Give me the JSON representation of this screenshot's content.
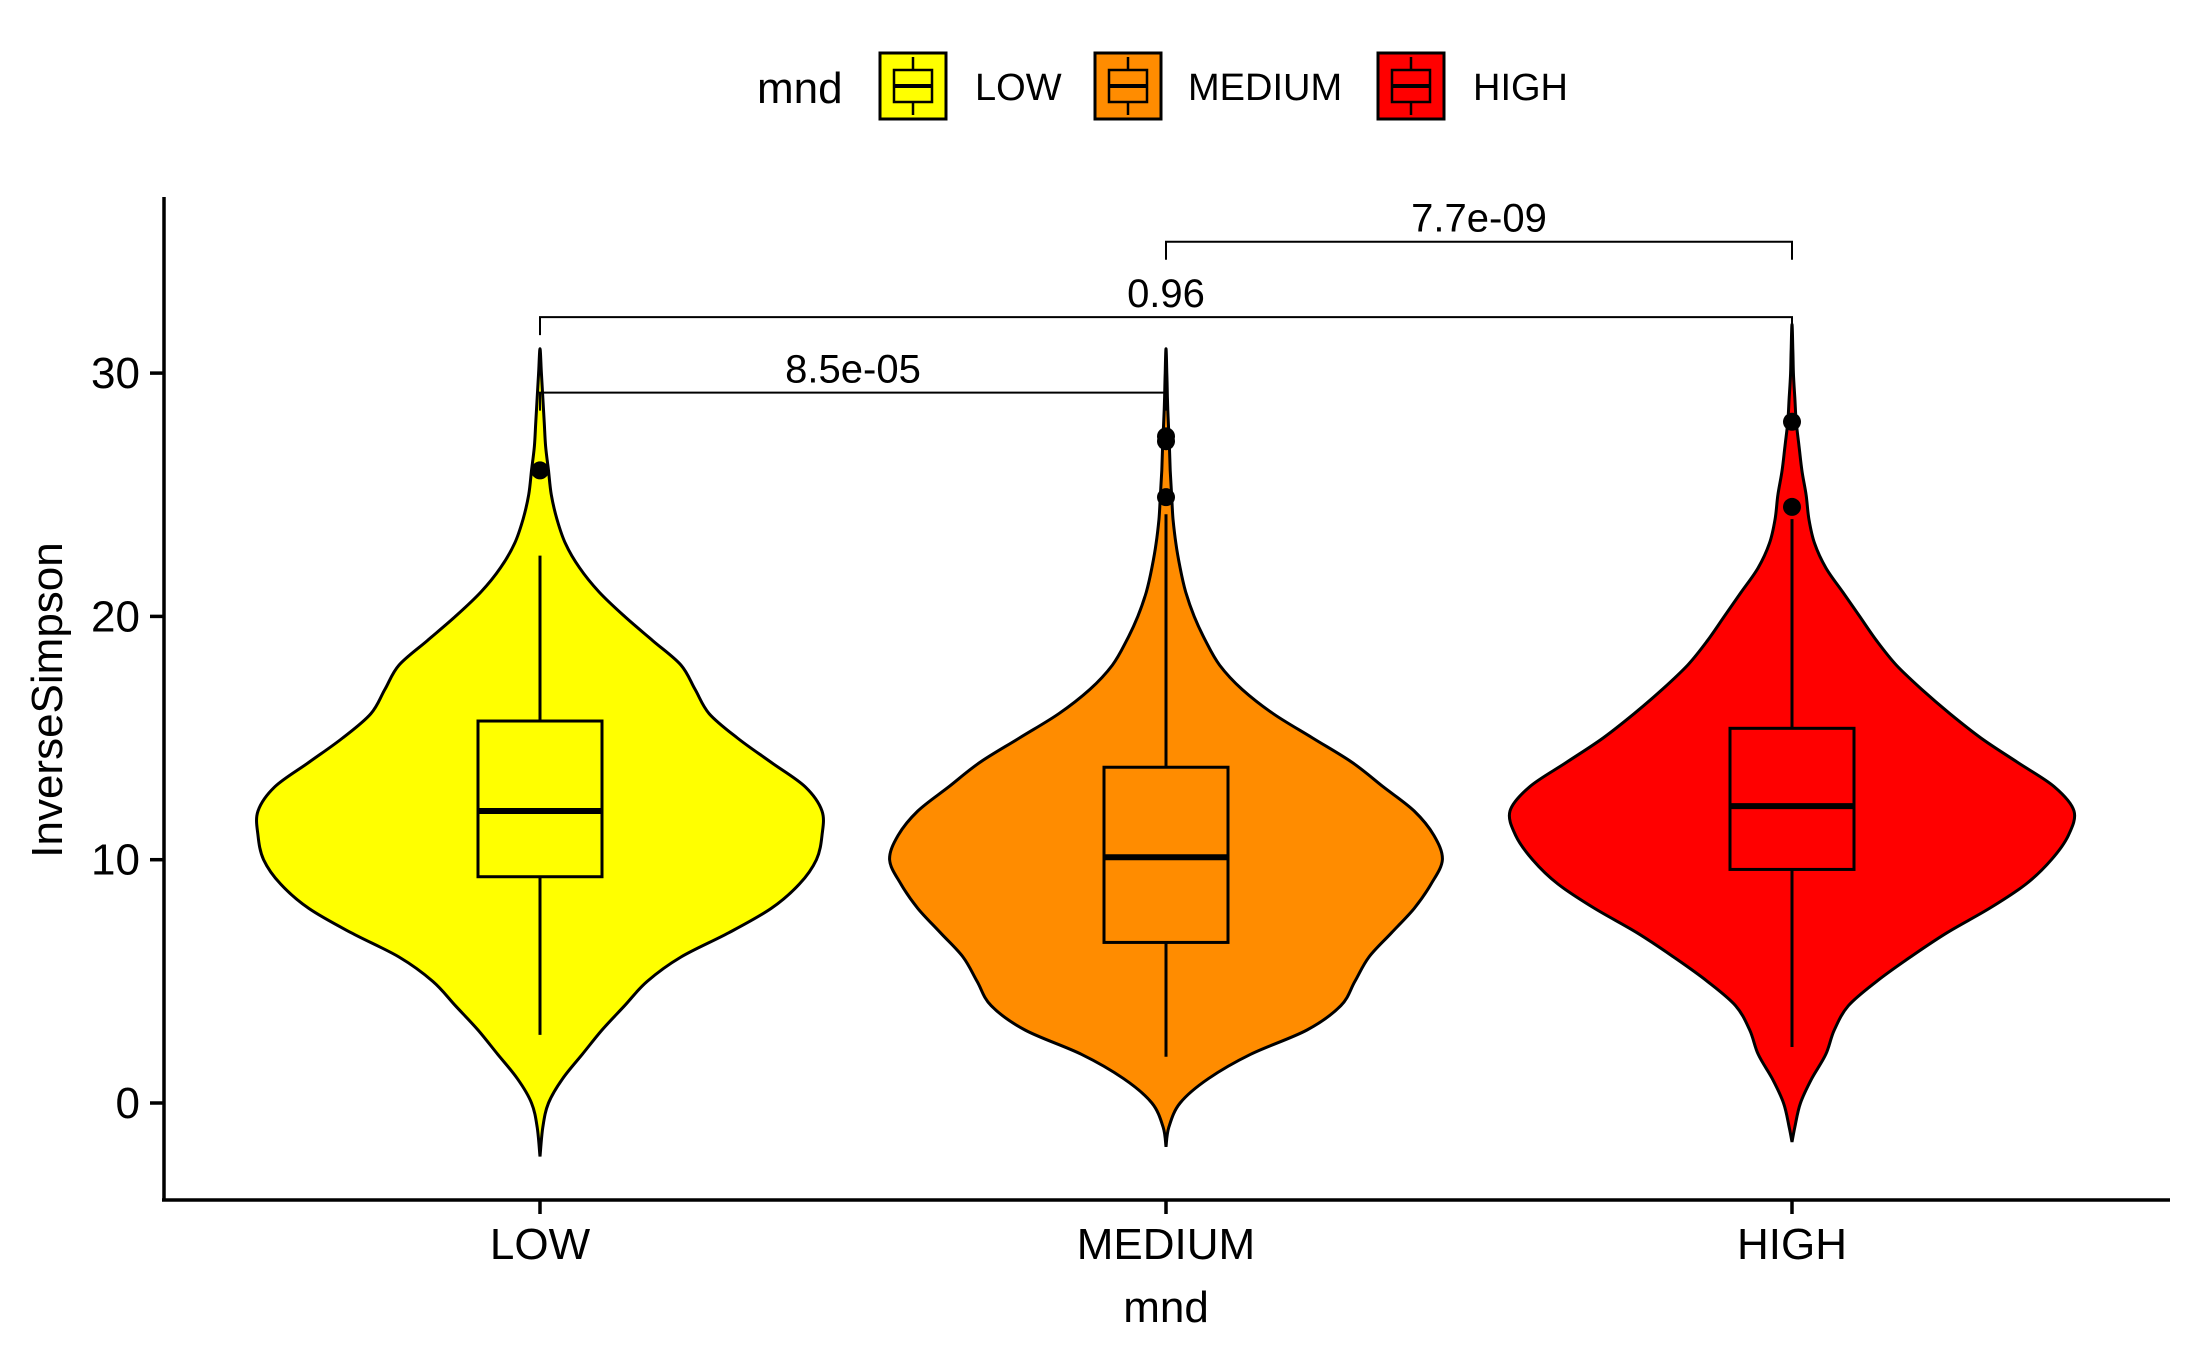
{
  "chart_data": {
    "type": "violin",
    "xlabel": "mnd",
    "ylabel": "InverseSimpson",
    "ylim": [
      -4,
      37
    ],
    "yticks": [
      0,
      10,
      20,
      30
    ],
    "categories": [
      "LOW",
      "MEDIUM",
      "HIGH"
    ],
    "grid": false,
    "legend": {
      "position": "top",
      "title": "mnd",
      "items": [
        {
          "label": "LOW",
          "color": "#FFFF00"
        },
        {
          "label": "MEDIUM",
          "color": "#FF8C00"
        },
        {
          "label": "HIGH",
          "color": "#FF0000"
        }
      ]
    },
    "groups": [
      {
        "name": "LOW",
        "color": "#FFFF00",
        "box": {
          "q1": 9.3,
          "median": 12.0,
          "q3": 15.7,
          "whisker_low": 2.8,
          "whisker_high": 22.5
        },
        "outliers": [
          26.0
        ],
        "violin_range": [
          -2.2,
          31.0
        ],
        "density": [
          [
            -2.2,
            0
          ],
          [
            -1,
            0.01
          ],
          [
            0,
            0.03
          ],
          [
            1,
            0.08
          ],
          [
            2,
            0.15
          ],
          [
            3,
            0.22
          ],
          [
            4,
            0.3
          ],
          [
            5,
            0.38
          ],
          [
            6,
            0.5
          ],
          [
            7,
            0.67
          ],
          [
            8,
            0.82
          ],
          [
            9,
            0.92
          ],
          [
            10,
            0.98
          ],
          [
            11,
            1.0
          ],
          [
            12,
            1.0
          ],
          [
            13,
            0.94
          ],
          [
            14,
            0.82
          ],
          [
            15,
            0.7
          ],
          [
            16,
            0.6
          ],
          [
            17,
            0.55
          ],
          [
            18,
            0.5
          ],
          [
            19,
            0.4
          ],
          [
            20,
            0.3
          ],
          [
            21,
            0.21
          ],
          [
            22,
            0.14
          ],
          [
            23,
            0.09
          ],
          [
            24,
            0.06
          ],
          [
            25,
            0.04
          ],
          [
            26,
            0.03
          ],
          [
            27,
            0.02
          ],
          [
            28,
            0.015
          ],
          [
            29,
            0.01
          ],
          [
            30,
            0.005
          ],
          [
            31,
            0
          ]
        ]
      },
      {
        "name": "MEDIUM",
        "color": "#FF8C00",
        "box": {
          "q1": 6.6,
          "median": 10.1,
          "q3": 13.8,
          "whisker_low": 1.9,
          "whisker_high": 24.2
        },
        "outliers": [
          24.9,
          27.2,
          27.4
        ],
        "violin_range": [
          -1.8,
          31.0
        ],
        "density": [
          [
            -1.8,
            0
          ],
          [
            -1,
            0.01
          ],
          [
            0,
            0.05
          ],
          [
            1,
            0.15
          ],
          [
            2,
            0.3
          ],
          [
            3,
            0.5
          ],
          [
            4,
            0.62
          ],
          [
            5,
            0.67
          ],
          [
            6,
            0.72
          ],
          [
            7,
            0.8
          ],
          [
            8,
            0.88
          ],
          [
            9,
            0.94
          ],
          [
            10,
            0.98
          ],
          [
            11,
            0.95
          ],
          [
            12,
            0.88
          ],
          [
            13,
            0.77
          ],
          [
            14,
            0.66
          ],
          [
            15,
            0.52
          ],
          [
            16,
            0.38
          ],
          [
            17,
            0.27
          ],
          [
            18,
            0.19
          ],
          [
            19,
            0.14
          ],
          [
            20,
            0.1
          ],
          [
            21,
            0.07
          ],
          [
            22,
            0.05
          ],
          [
            23,
            0.035
          ],
          [
            24,
            0.025
          ],
          [
            25,
            0.02
          ],
          [
            26,
            0.015
          ],
          [
            27,
            0.012
          ],
          [
            28,
            0.008
          ],
          [
            29,
            0.005
          ],
          [
            30,
            0.003
          ],
          [
            31,
            0
          ]
        ]
      },
      {
        "name": "HIGH",
        "color": "#FF0000",
        "box": {
          "q1": 9.6,
          "median": 12.2,
          "q3": 15.4,
          "whisker_low": 2.3,
          "whisker_high": 24.0
        },
        "outliers": [
          24.5,
          28.0
        ],
        "violin_range": [
          -1.6,
          32.0
        ],
        "density": [
          [
            -1.6,
            0
          ],
          [
            -1,
            0.01
          ],
          [
            0,
            0.03
          ],
          [
            1,
            0.07
          ],
          [
            2,
            0.12
          ],
          [
            3,
            0.15
          ],
          [
            4,
            0.2
          ],
          [
            5,
            0.3
          ],
          [
            6,
            0.42
          ],
          [
            7,
            0.55
          ],
          [
            8,
            0.7
          ],
          [
            9,
            0.83
          ],
          [
            10,
            0.92
          ],
          [
            11,
            0.98
          ],
          [
            12,
            1.0
          ],
          [
            13,
            0.93
          ],
          [
            14,
            0.8
          ],
          [
            15,
            0.67
          ],
          [
            16,
            0.56
          ],
          [
            17,
            0.46
          ],
          [
            18,
            0.37
          ],
          [
            19,
            0.3
          ],
          [
            20,
            0.24
          ],
          [
            21,
            0.18
          ],
          [
            22,
            0.12
          ],
          [
            23,
            0.08
          ],
          [
            24,
            0.06
          ],
          [
            25,
            0.05
          ],
          [
            26,
            0.035
          ],
          [
            27,
            0.025
          ],
          [
            28,
            0.015
          ],
          [
            29,
            0.01
          ],
          [
            30,
            0.005
          ],
          [
            31,
            0.003
          ],
          [
            32,
            0
          ]
        ]
      }
    ],
    "comparisons": [
      {
        "from": "LOW",
        "to": "MEDIUM",
        "label": "8.5e-05",
        "y": 29.2
      },
      {
        "from": "LOW",
        "to": "HIGH",
        "label": "0.96",
        "y": 32.3
      },
      {
        "from": "MEDIUM",
        "to": "HIGH",
        "label": "7.7e-09",
        "y": 35.4
      }
    ]
  }
}
